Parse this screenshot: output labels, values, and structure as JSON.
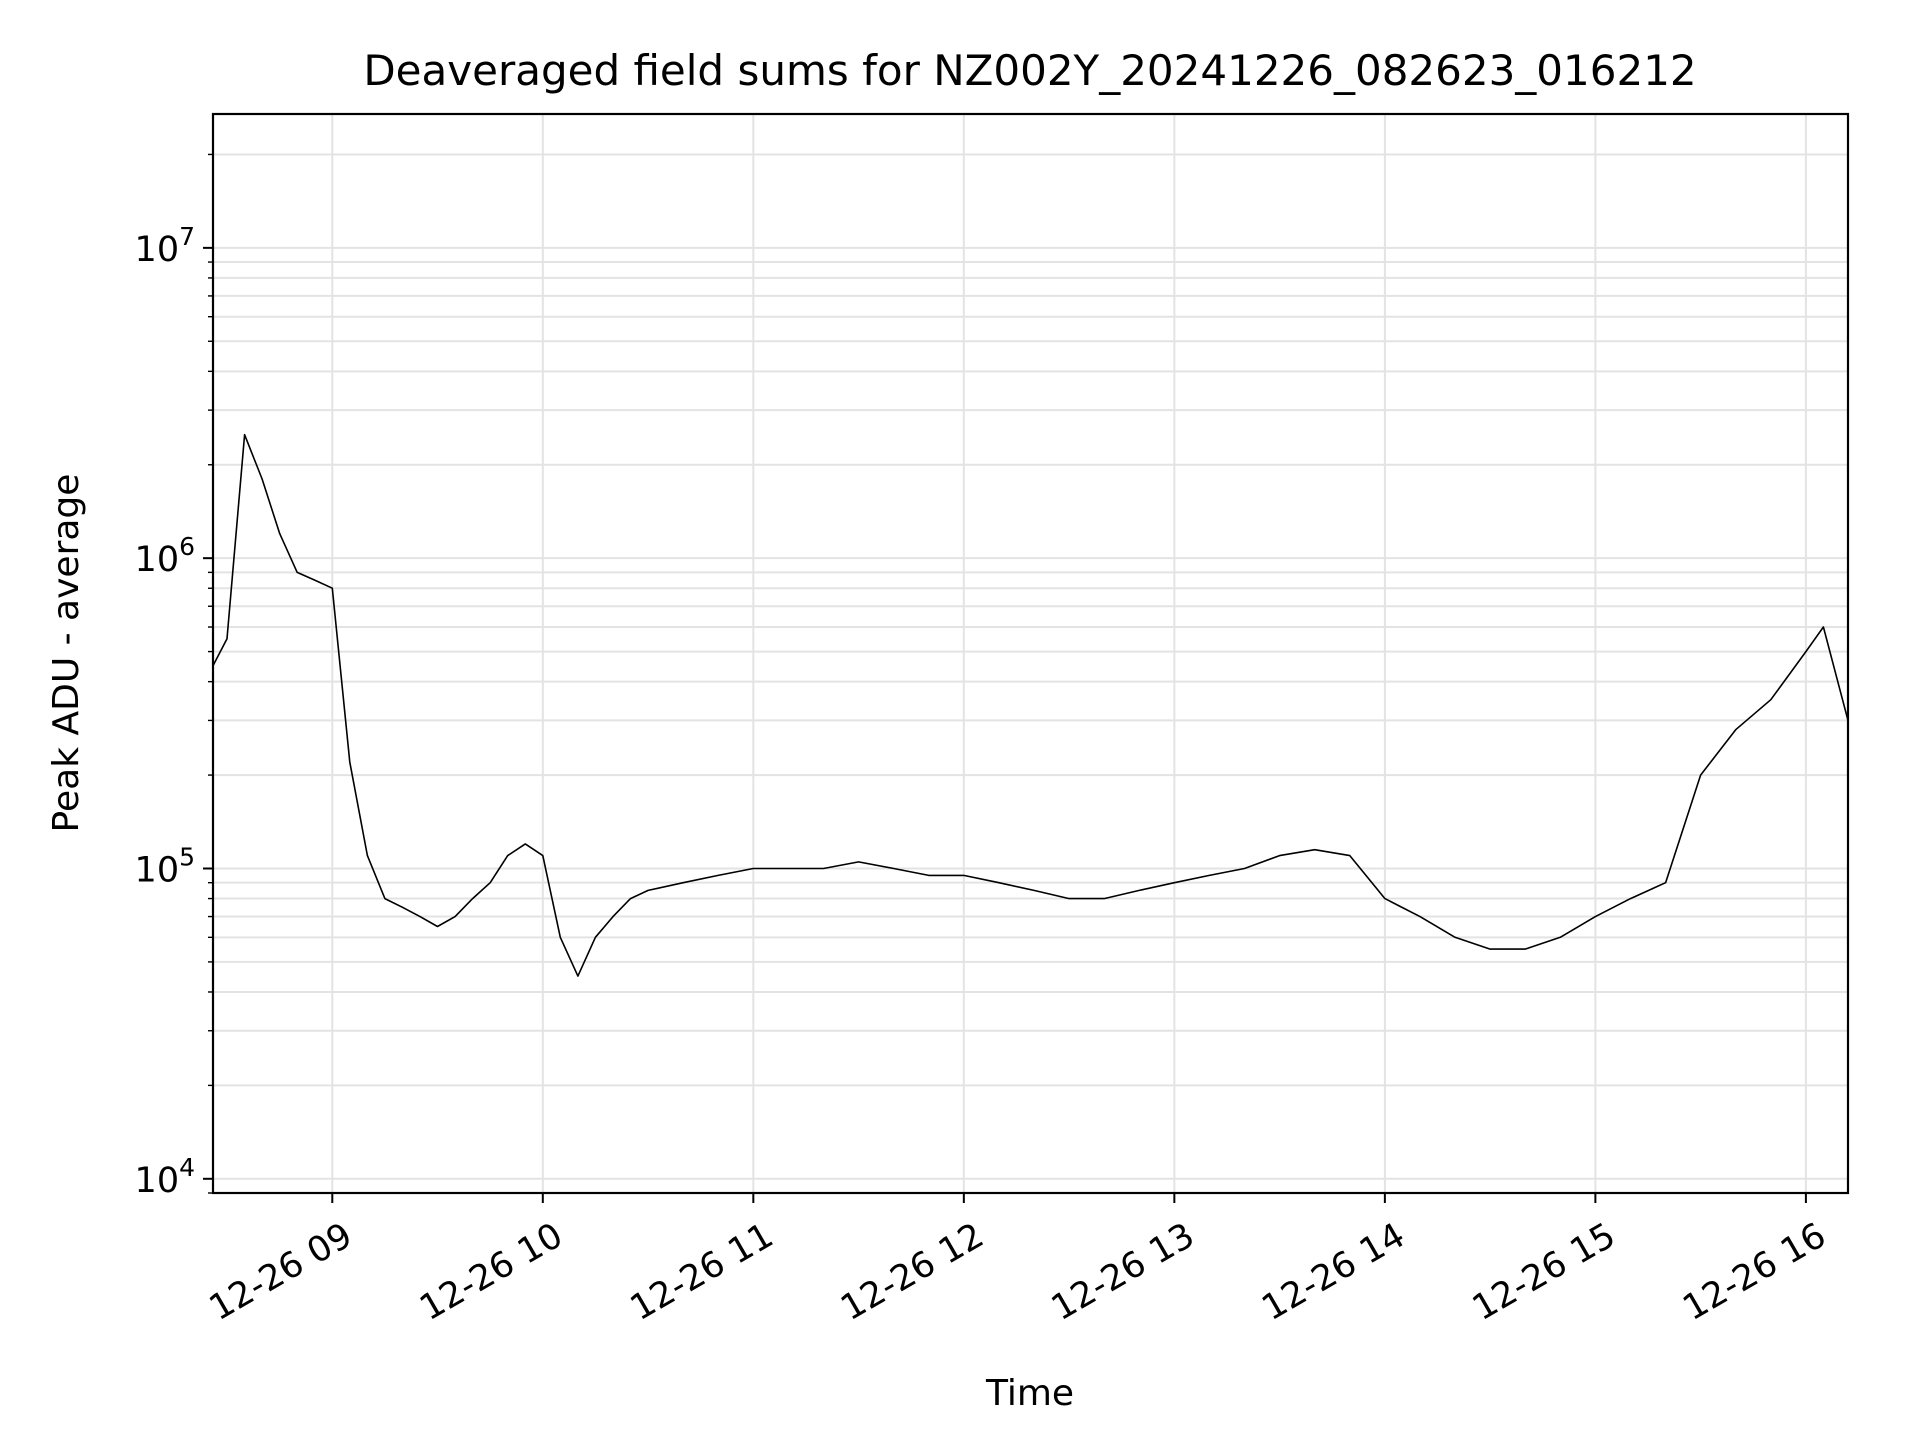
{
  "chart_data": {
    "type": "line",
    "title": "Deaveraged field sums for NZ002Y_20241226_082623_016212",
    "xlabel": "Time",
    "ylabel": "Peak ADU - average",
    "yscale": "log",
    "ylim": [
      9000,
      27000000
    ],
    "xlim": [
      "2024-12-26 08:26",
      "2024-12-26 16:12"
    ],
    "grid": true,
    "x_ticks": [
      {
        "value": "2024-12-26 09:00",
        "label": "12-26 09"
      },
      {
        "value": "2024-12-26 10:00",
        "label": "12-26 10"
      },
      {
        "value": "2024-12-26 11:00",
        "label": "12-26 11"
      },
      {
        "value": "2024-12-26 12:00",
        "label": "12-26 12"
      },
      {
        "value": "2024-12-26 13:00",
        "label": "12-26 13"
      },
      {
        "value": "2024-12-26 14:00",
        "label": "12-26 14"
      },
      {
        "value": "2024-12-26 15:00",
        "label": "12-26 15"
      },
      {
        "value": "2024-12-26 16:00",
        "label": "12-26 16"
      }
    ],
    "y_ticks": [
      {
        "value": 10000,
        "base": "10",
        "exp": "4"
      },
      {
        "value": 100000,
        "base": "10",
        "exp": "5"
      },
      {
        "value": 1000000,
        "base": "10",
        "exp": "6"
      },
      {
        "value": 10000000,
        "base": "10",
        "exp": "7"
      }
    ],
    "series": [
      {
        "color": "#000000",
        "x": [
          "2024-12-26 08:26",
          "2024-12-26 08:30",
          "2024-12-26 08:35",
          "2024-12-26 08:40",
          "2024-12-26 08:45",
          "2024-12-26 08:50",
          "2024-12-26 08:55",
          "2024-12-26 09:00",
          "2024-12-26 09:05",
          "2024-12-26 09:10",
          "2024-12-26 09:15",
          "2024-12-26 09:20",
          "2024-12-26 09:25",
          "2024-12-26 09:30",
          "2024-12-26 09:35",
          "2024-12-26 09:40",
          "2024-12-26 09:45",
          "2024-12-26 09:50",
          "2024-12-26 09:55",
          "2024-12-26 10:00",
          "2024-12-26 10:05",
          "2024-12-26 10:10",
          "2024-12-26 10:15",
          "2024-12-26 10:20",
          "2024-12-26 10:25",
          "2024-12-26 10:30",
          "2024-12-26 10:40",
          "2024-12-26 10:50",
          "2024-12-26 11:00",
          "2024-12-26 11:10",
          "2024-12-26 11:20",
          "2024-12-26 11:30",
          "2024-12-26 11:40",
          "2024-12-26 11:50",
          "2024-12-26 12:00",
          "2024-12-26 12:10",
          "2024-12-26 12:20",
          "2024-12-26 12:30",
          "2024-12-26 12:40",
          "2024-12-26 12:50",
          "2024-12-26 13:00",
          "2024-12-26 13:10",
          "2024-12-26 13:20",
          "2024-12-26 13:30",
          "2024-12-26 13:40",
          "2024-12-26 13:50",
          "2024-12-26 14:00",
          "2024-12-26 14:10",
          "2024-12-26 14:20",
          "2024-12-26 14:30",
          "2024-12-26 14:40",
          "2024-12-26 14:50",
          "2024-12-26 15:00",
          "2024-12-26 15:10",
          "2024-12-26 15:20",
          "2024-12-26 15:30",
          "2024-12-26 15:40",
          "2024-12-26 15:50",
          "2024-12-26 16:00",
          "2024-12-26 16:05",
          "2024-12-26 16:12"
        ],
        "y": [
          450000,
          550000,
          2500000,
          1800000,
          1200000,
          900000,
          850000,
          800000,
          220000,
          110000,
          80000,
          75000,
          70000,
          65000,
          70000,
          80000,
          90000,
          110000,
          120000,
          110000,
          60000,
          45000,
          60000,
          70000,
          80000,
          85000,
          90000,
          95000,
          100000,
          100000,
          100000,
          105000,
          100000,
          95000,
          95000,
          90000,
          85000,
          80000,
          80000,
          85000,
          90000,
          95000,
          100000,
          110000,
          115000,
          110000,
          80000,
          70000,
          60000,
          55000,
          55000,
          60000,
          70000,
          80000,
          90000,
          200000,
          280000,
          350000,
          500000,
          600000,
          300000
        ]
      }
    ]
  }
}
